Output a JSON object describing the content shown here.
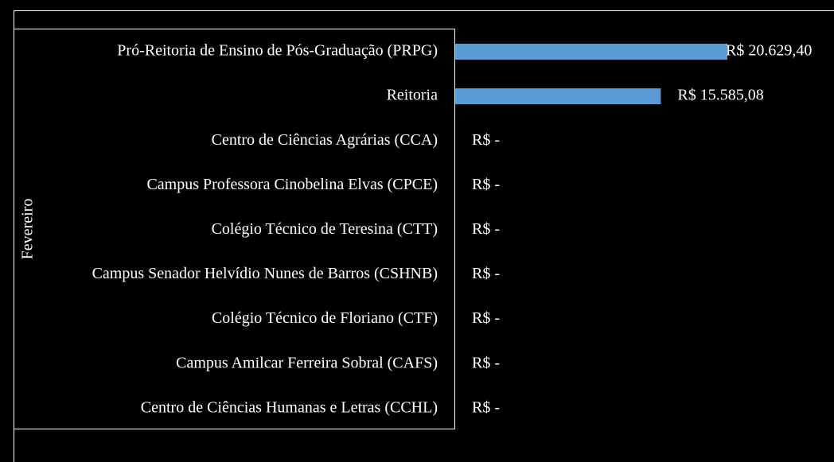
{
  "chart_data": {
    "type": "bar",
    "orientation": "horizontal",
    "group": "Fevereiro",
    "categories": [
      "Pró-Reitoria de Ensino de Pós-Graduação (PRPG)",
      "Reitoria",
      "Centro de Ciências Agrárias (CCA)",
      "Campus Professora Cinobelina Elvas (CPCE)",
      "Colégio Técnico de Teresina (CTT)",
      "Campus Senador Helvídio Nunes de Barros (CSHNB)",
      "Colégio Técnico de Floriano (CTF)",
      "Campus Amilcar Ferreira Sobral (CAFS)",
      "Centro de Ciências Humanas e Letras (CCHL)"
    ],
    "values": [
      20629.4,
      15585.08,
      0,
      0,
      0,
      0,
      0,
      0,
      0
    ],
    "value_labels": [
      "R$ 20.629,40",
      "R$ 15.585,08",
      "R$ -",
      "R$ -",
      "R$ -",
      "R$ -",
      "R$ -",
      "R$ -",
      "R$ -"
    ],
    "color": "#5b9bd5"
  }
}
